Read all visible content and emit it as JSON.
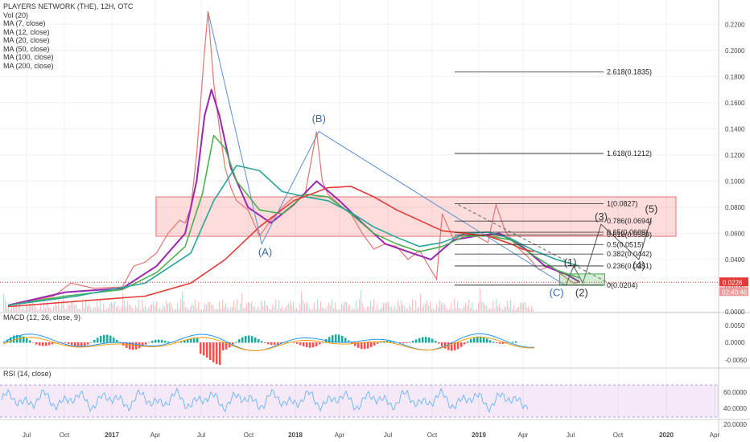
{
  "chart_data": {
    "type": "line",
    "symbol_title": "PLAYERS NETWORK (THE), 12H, OTC",
    "indicators": [
      "Vol (20)",
      "MA (7, close)",
      "MA (12, close)",
      "MA (20, close)",
      "MA (50, close)",
      "MA (100, close)",
      "MA (200, close)"
    ],
    "x_ticks": [
      "Jul",
      "Oct",
      "2017",
      "Apr",
      "Jul",
      "Oct",
      "2018",
      "Apr",
      "Jul",
      "Oct",
      "2019",
      "Apr",
      "Jul",
      "Oct",
      "2020",
      "Apr"
    ],
    "price_axis": {
      "ticks": [
        "0.2200",
        "0.2000",
        "0.1800",
        "0.1600",
        "0.1400",
        "0.1200",
        "0.1000",
        "0.0800",
        "0.0600",
        "0.0400",
        "0.0200",
        "0.0000"
      ],
      "range": [
        0,
        0.23
      ]
    },
    "last_price": "0.0226",
    "countdown": "02:40:46",
    "price_series": [
      {
        "t": 0.0,
        "v": 0.005
      },
      {
        "t": 0.2,
        "v": 0.008
      },
      {
        "t": 0.4,
        "v": 0.012
      },
      {
        "t": 0.55,
        "v": 0.022
      },
      {
        "t": 0.75,
        "v": 0.018
      },
      {
        "t": 1.0,
        "v": 0.019
      },
      {
        "t": 1.1,
        "v": 0.035
      },
      {
        "t": 1.2,
        "v": 0.038
      },
      {
        "t": 1.3,
        "v": 0.045
      },
      {
        "t": 1.4,
        "v": 0.06
      },
      {
        "t": 1.5,
        "v": 0.07
      },
      {
        "t": 1.55,
        "v": 0.068
      },
      {
        "t": 1.6,
        "v": 0.08
      },
      {
        "t": 1.65,
        "v": 0.12
      },
      {
        "t": 1.72,
        "v": 0.2
      },
      {
        "t": 1.75,
        "v": 0.23
      },
      {
        "t": 1.8,
        "v": 0.175
      },
      {
        "t": 1.85,
        "v": 0.14
      },
      {
        "t": 1.9,
        "v": 0.11
      },
      {
        "t": 1.95,
        "v": 0.095
      },
      {
        "t": 2.0,
        "v": 0.085
      },
      {
        "t": 2.1,
        "v": 0.078
      },
      {
        "t": 2.2,
        "v": 0.058
      },
      {
        "t": 2.3,
        "v": 0.07
      },
      {
        "t": 2.4,
        "v": 0.08
      },
      {
        "t": 2.5,
        "v": 0.088
      },
      {
        "t": 2.6,
        "v": 0.09
      },
      {
        "t": 2.7,
        "v": 0.138
      },
      {
        "t": 2.75,
        "v": 0.1
      },
      {
        "t": 2.8,
        "v": 0.09
      },
      {
        "t": 2.9,
        "v": 0.082
      },
      {
        "t": 3.0,
        "v": 0.075
      },
      {
        "t": 3.1,
        "v": 0.06
      },
      {
        "t": 3.2,
        "v": 0.048
      },
      {
        "t": 3.3,
        "v": 0.052
      },
      {
        "t": 3.4,
        "v": 0.05
      },
      {
        "t": 3.5,
        "v": 0.04
      },
      {
        "t": 3.6,
        "v": 0.047
      },
      {
        "t": 3.75,
        "v": 0.025
      },
      {
        "t": 3.8,
        "v": 0.075
      },
      {
        "t": 3.9,
        "v": 0.055
      },
      {
        "t": 4.0,
        "v": 0.06
      },
      {
        "t": 4.1,
        "v": 0.058
      },
      {
        "t": 4.2,
        "v": 0.053
      },
      {
        "t": 4.27,
        "v": 0.082
      },
      {
        "t": 4.35,
        "v": 0.062
      },
      {
        "t": 4.45,
        "v": 0.05
      },
      {
        "t": 4.55,
        "v": 0.042
      },
      {
        "t": 4.65,
        "v": 0.032
      },
      {
        "t": 4.75,
        "v": 0.035
      },
      {
        "t": 4.85,
        "v": 0.028
      },
      {
        "t": 4.95,
        "v": 0.022
      },
      {
        "t": 5.0,
        "v": 0.0226
      }
    ],
    "ma_series": [
      {
        "name": "MA (7, close)",
        "color": "#9C27B0",
        "points": [
          [
            0,
            0.005
          ],
          [
            0.5,
            0.015
          ],
          [
            1.0,
            0.018
          ],
          [
            1.3,
            0.035
          ],
          [
            1.55,
            0.06
          ],
          [
            1.65,
            0.1
          ],
          [
            1.72,
            0.15
          ],
          [
            1.78,
            0.17
          ],
          [
            1.85,
            0.15
          ],
          [
            1.95,
            0.11
          ],
          [
            2.1,
            0.08
          ],
          [
            2.3,
            0.068
          ],
          [
            2.5,
            0.082
          ],
          [
            2.7,
            0.1
          ],
          [
            2.9,
            0.085
          ],
          [
            3.1,
            0.068
          ],
          [
            3.3,
            0.052
          ],
          [
            3.5,
            0.046
          ],
          [
            3.7,
            0.04
          ],
          [
            3.9,
            0.055
          ],
          [
            4.1,
            0.058
          ],
          [
            4.3,
            0.06
          ],
          [
            4.5,
            0.05
          ],
          [
            4.7,
            0.035
          ],
          [
            4.9,
            0.028
          ],
          [
            5.0,
            0.023
          ]
        ]
      },
      {
        "name": "MA (20, close)",
        "color": "#4CAF50",
        "points": [
          [
            0,
            0.005
          ],
          [
            0.5,
            0.012
          ],
          [
            1.0,
            0.017
          ],
          [
            1.3,
            0.03
          ],
          [
            1.55,
            0.05
          ],
          [
            1.7,
            0.09
          ],
          [
            1.8,
            0.135
          ],
          [
            1.9,
            0.125
          ],
          [
            2.0,
            0.1
          ],
          [
            2.2,
            0.078
          ],
          [
            2.4,
            0.075
          ],
          [
            2.6,
            0.09
          ],
          [
            2.8,
            0.088
          ],
          [
            3.0,
            0.075
          ],
          [
            3.2,
            0.06
          ],
          [
            3.4,
            0.052
          ],
          [
            3.6,
            0.046
          ],
          [
            3.8,
            0.05
          ],
          [
            4.0,
            0.058
          ],
          [
            4.2,
            0.058
          ],
          [
            4.4,
            0.055
          ],
          [
            4.6,
            0.043
          ],
          [
            4.8,
            0.032
          ],
          [
            5.0,
            0.026
          ]
        ]
      },
      {
        "name": "MA (50, close)",
        "color": "#26A69A",
        "points": [
          [
            0,
            0.005
          ],
          [
            0.6,
            0.012
          ],
          [
            1.2,
            0.022
          ],
          [
            1.6,
            0.045
          ],
          [
            1.8,
            0.085
          ],
          [
            2.0,
            0.112
          ],
          [
            2.2,
            0.108
          ],
          [
            2.4,
            0.092
          ],
          [
            2.6,
            0.088
          ],
          [
            2.8,
            0.085
          ],
          [
            3.0,
            0.076
          ],
          [
            3.2,
            0.065
          ],
          [
            3.4,
            0.057
          ],
          [
            3.6,
            0.05
          ],
          [
            3.8,
            0.053
          ],
          [
            4.0,
            0.06
          ],
          [
            4.2,
            0.061
          ],
          [
            4.4,
            0.056
          ],
          [
            4.6,
            0.047
          ],
          [
            4.8,
            0.04
          ],
          [
            5.0,
            0.035
          ]
        ]
      },
      {
        "name": "MA (200, close)",
        "color": "#E53935",
        "points": [
          [
            0,
            0.004
          ],
          [
            0.6,
            0.008
          ],
          [
            1.2,
            0.012
          ],
          [
            1.6,
            0.022
          ],
          [
            1.9,
            0.04
          ],
          [
            2.2,
            0.065
          ],
          [
            2.5,
            0.085
          ],
          [
            2.8,
            0.095
          ],
          [
            3.0,
            0.096
          ],
          [
            3.2,
            0.088
          ],
          [
            3.4,
            0.078
          ],
          [
            3.6,
            0.07
          ],
          [
            3.8,
            0.062
          ],
          [
            4.0,
            0.06
          ],
          [
            4.2,
            0.058
          ],
          [
            4.4,
            0.052
          ],
          [
            4.5,
            0.048
          ],
          [
            4.6,
            0.046
          ]
        ]
      }
    ],
    "fib_levels": [
      {
        "label": "2.618(0.1835)",
        "v": 0.1835
      },
      {
        "label": "1.618(0.1212)",
        "v": 0.1212
      },
      {
        "label": "1(0.0827)",
        "v": 0.0827
      },
      {
        "label": "0.786(0.0694)",
        "v": 0.0694
      },
      {
        "label": "0.65(0.0609)",
        "v": 0.0609
      },
      {
        "label": "0.618(0.0589)",
        "v": 0.0589
      },
      {
        "label": "0.5(0.0515)",
        "v": 0.0515
      },
      {
        "label": "0.382(0.0442)",
        "v": 0.0442
      },
      {
        "label": "0.236(0.0351)",
        "v": 0.0351
      },
      {
        "label": "0(0.0204)",
        "v": 0.0204
      }
    ],
    "wave_labels": [
      {
        "text": "(A)",
        "t": 2.25,
        "v": 0.043
      },
      {
        "text": "(B)",
        "t": 2.72,
        "v": 0.145
      },
      {
        "text": "(C)",
        "t": 4.8,
        "v": 0.012
      },
      {
        "text": "(1)",
        "t": 4.92,
        "v": 0.035
      },
      {
        "text": "(2)",
        "t": 5.02,
        "v": 0.012
      },
      {
        "text": "(3)",
        "t": 5.19,
        "v": 0.07
      },
      {
        "text": "(4)",
        "t": 5.52,
        "v": 0.033
      },
      {
        "text": "(5)",
        "t": 5.63,
        "v": 0.076
      }
    ],
    "macd": {
      "label": "MACD (12, 26, close, 9)",
      "ticks": [
        "0.0050",
        "0.0000",
        "-0.0050"
      ]
    },
    "rsi": {
      "label": "RSI (14, close)",
      "ticks": [
        "60.0000",
        "40.0000",
        "20.0000"
      ]
    }
  }
}
